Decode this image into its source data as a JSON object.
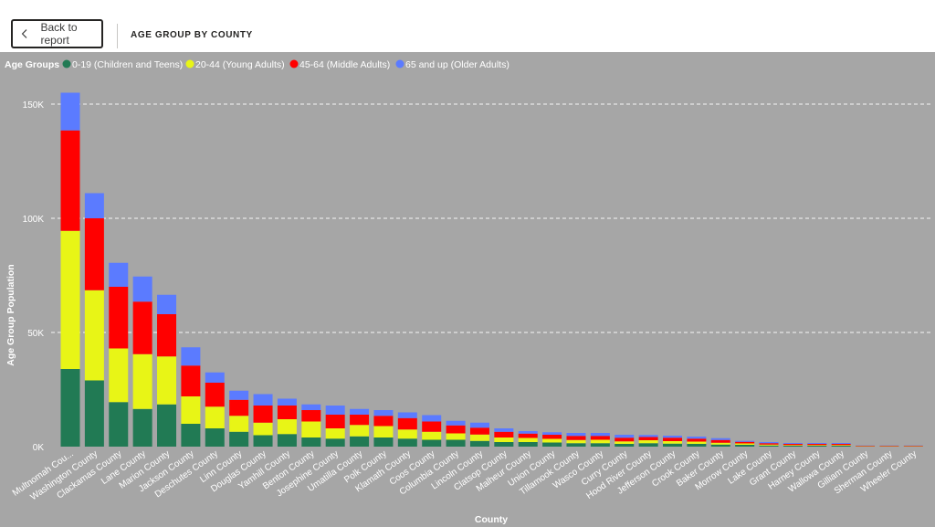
{
  "header": {
    "back_label": "Back to report",
    "title": "AGE GROUP BY COUNTY"
  },
  "colors": {
    "background": "#a6a6a6",
    "children": "#217a54",
    "young": "#e8f516",
    "middle": "#ff0000",
    "older": "#5b7bff"
  },
  "chart_data": {
    "type": "bar",
    "stacked": true,
    "xlabel": "County",
    "ylabel": "Age Group Population",
    "ylim": [
      0,
      150000
    ],
    "yticks": [
      0,
      50000,
      100000,
      150000
    ],
    "ytick_labels": [
      "0K",
      "50K",
      "100K",
      "150K"
    ],
    "grid": true,
    "legend": {
      "title": "Age Groups",
      "position": "top-left",
      "entries": [
        "0-19 (Children and Teens)",
        "20-44 (Young Adults)",
        "45-64 (Middle Adults)",
        "65 and up (Older Adults)"
      ]
    },
    "categories": [
      "Multnomah Cou...",
      "Washington County",
      "Clackamas County",
      "Lane County",
      "Marion County",
      "Jackson County",
      "Deschutes County",
      "Linn County",
      "Douglas County",
      "Yamhill County",
      "Benton County",
      "Josephine County",
      "Umatilla County",
      "Polk County",
      "Klamath County",
      "Coos County",
      "Columbia County",
      "Lincoln County",
      "Clatsop County",
      "Malheur County",
      "Union County",
      "Tillamook County",
      "Wasco County",
      "Curry County",
      "Hood River County",
      "Jefferson County",
      "Crook County",
      "Baker County",
      "Morrow County",
      "Lake County",
      "Grant County",
      "Harney County",
      "Wallowa County",
      "Gilliam County",
      "Sherman County",
      "Wheeler County"
    ],
    "series": [
      {
        "name": "0-19 (Children and Teens)",
        "values": [
          34000,
          29000,
          19500,
          16500,
          18500,
          10000,
          8000,
          6500,
          5000,
          5500,
          4000,
          3500,
          4500,
          4000,
          3500,
          3000,
          3000,
          2500,
          2000,
          2000,
          1800,
          1500,
          1500,
          1200,
          1500,
          1300,
          1200,
          900,
          800,
          500,
          400,
          400,
          400,
          100,
          100,
          100
        ]
      },
      {
        "name": "20-44 (Young Adults)",
        "values": [
          60500,
          39500,
          23500,
          24000,
          21000,
          12000,
          9500,
          7000,
          5500,
          6500,
          7000,
          4500,
          5000,
          5000,
          4000,
          3500,
          2800,
          2800,
          2000,
          1800,
          1600,
          1400,
          1500,
          1100,
          1300,
          1100,
          1000,
          800,
          600,
          400,
          300,
          300,
          300,
          100,
          100,
          100
        ]
      },
      {
        "name": "45-64 (Middle Adults)",
        "values": [
          44000,
          31500,
          27000,
          23000,
          18500,
          13500,
          10500,
          7000,
          7500,
          6000,
          5000,
          6000,
          4500,
          4500,
          5000,
          4500,
          3500,
          3000,
          2500,
          1900,
          1800,
          1800,
          1700,
          1600,
          1400,
          1500,
          1300,
          1200,
          700,
          600,
          500,
          500,
          500,
          200,
          200,
          200
        ]
      },
      {
        "name": "65 and up (Older Adults)",
        "values": [
          16500,
          11000,
          10500,
          11000,
          8500,
          8000,
          4500,
          4000,
          5000,
          3000,
          2500,
          4000,
          2500,
          2500,
          2500,
          2800,
          2000,
          2200,
          1500,
          1100,
          1100,
          1300,
          1300,
          1300,
          900,
          900,
          900,
          800,
          400,
          500,
          400,
          400,
          400,
          100,
          100,
          100
        ]
      }
    ]
  }
}
